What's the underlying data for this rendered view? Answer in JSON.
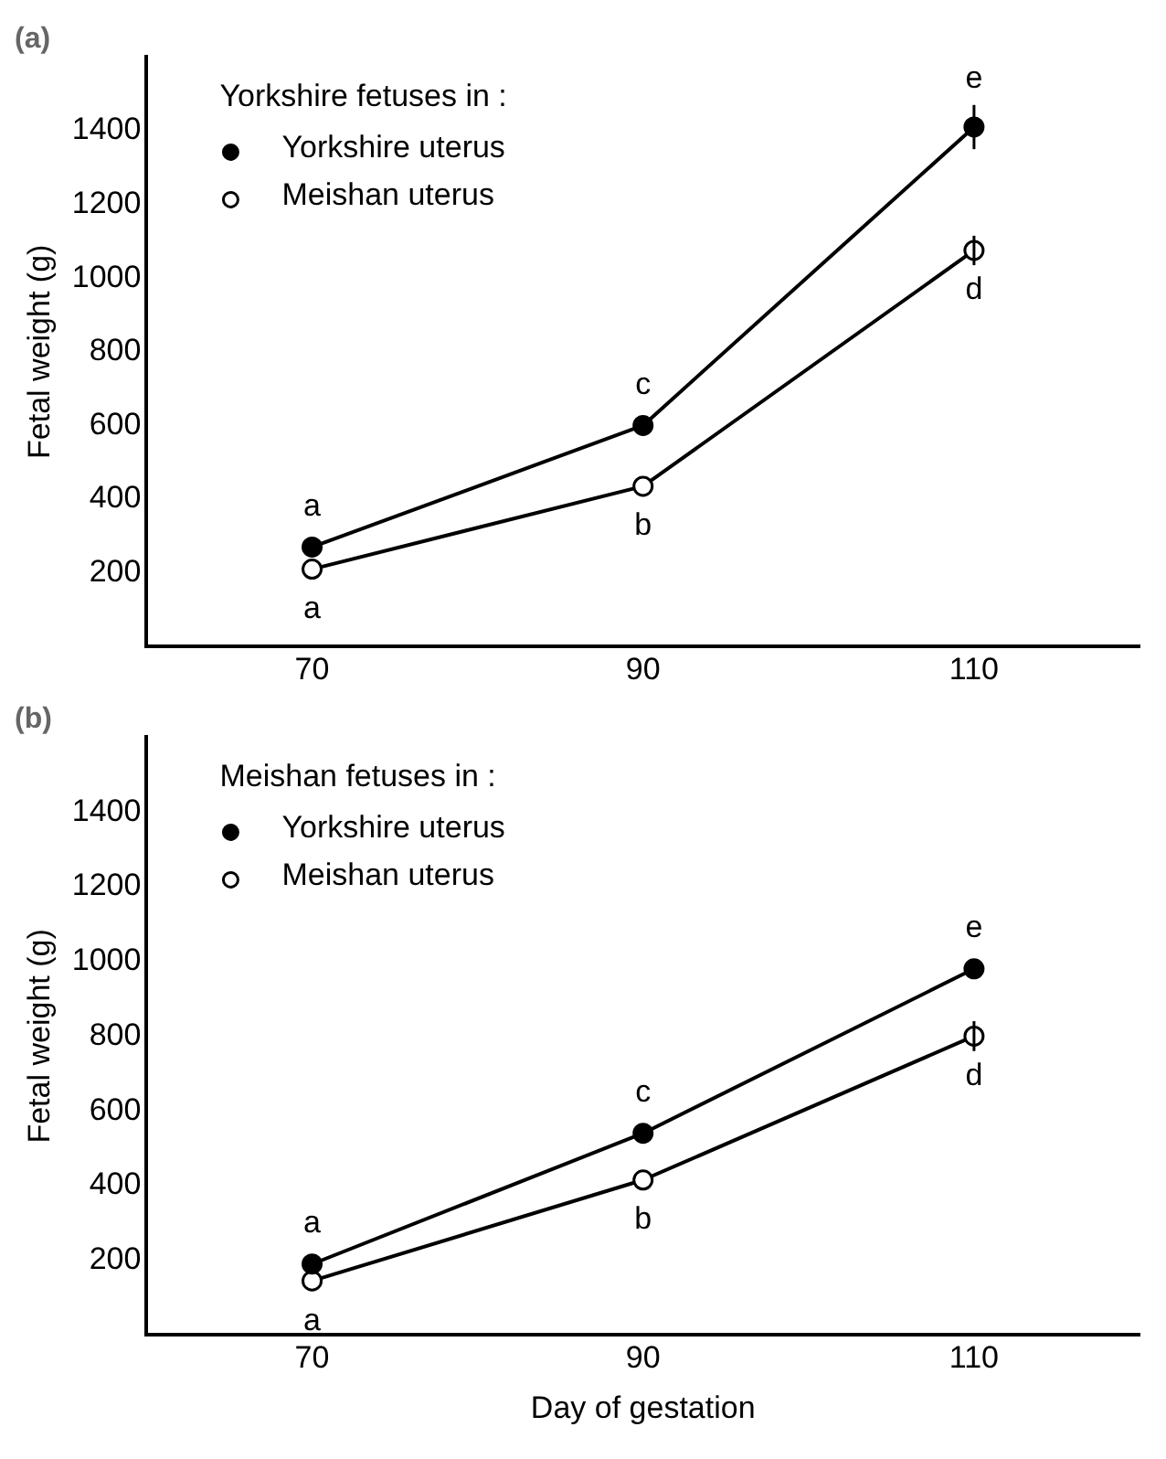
{
  "chart_data": [
    {
      "type": "line",
      "title": "(a)",
      "ylabel": "Fetal weight (g)",
      "legend_title": "Yorkshire fetuses in :",
      "legend": "top left",
      "marker": "circle",
      "grid": false,
      "x": [
        70,
        90,
        110
      ],
      "xlim": [
        60,
        120
      ],
      "xticks": [
        70,
        90,
        110
      ],
      "ylim": [
        0,
        1600
      ],
      "yticks": [
        200,
        400,
        600,
        800,
        1000,
        1200,
        1400
      ],
      "series": [
        {
          "name": "Yorkshire uterus",
          "color": "#000000",
          "colors": [
            "#000000",
            "#000000",
            "#000000"
          ],
          "values": [
            270,
            600,
            1410
          ],
          "errors": [
            null,
            null,
            60
          ]
        },
        {
          "name": "Meishan uterus",
          "color": "#000000",
          "colors": [
            "#ffffff",
            "#ffffff",
            "#ffffff"
          ],
          "values": [
            210,
            435,
            1075
          ],
          "errors": [
            null,
            null,
            40
          ]
        }
      ],
      "annotations": [
        {
          "text": "a",
          "x": 70,
          "y": 270
        },
        {
          "text": "a",
          "x": 70,
          "y": 210
        },
        {
          "text": "c",
          "x": 90,
          "y": 600
        },
        {
          "text": "b",
          "x": 90,
          "y": 435
        },
        {
          "text": "e",
          "x": 110,
          "y": 1410
        },
        {
          "text": "d",
          "x": 110,
          "y": 1075
        }
      ]
    },
    {
      "type": "line",
      "title": "(b)",
      "xlabel": "Day of gestation",
      "ylabel": "Fetal weight (g)",
      "legend_title": "Meishan fetuses in :",
      "legend": "top left",
      "marker": "circle",
      "grid": false,
      "x": [
        70,
        90,
        110
      ],
      "xlim": [
        60,
        120
      ],
      "xticks": [
        70,
        90,
        110
      ],
      "ylim": [
        0,
        1600
      ],
      "yticks": [
        200,
        400,
        600,
        800,
        1000,
        1200,
        1400
      ],
      "series": [
        {
          "name": "Yorkshire uterus",
          "color": "#000000",
          "colors": [
            "#000000",
            "#000000",
            "#000000"
          ],
          "values": [
            190,
            540,
            980
          ],
          "errors": [
            null,
            null,
            20
          ]
        },
        {
          "name": "Meishan uterus",
          "color": "#000000",
          "colors": [
            "#ffffff",
            "#ffffff",
            "#ffffff"
          ],
          "values": [
            145,
            415,
            800
          ],
          "errors": [
            null,
            null,
            40
          ]
        }
      ],
      "annotations": [
        {
          "text": "a",
          "x": 70,
          "y": 190
        },
        {
          "text": "a",
          "x": 70,
          "y": 145
        },
        {
          "text": "c",
          "x": 90,
          "y": 540
        },
        {
          "text": "b",
          "x": 90,
          "y": 415
        },
        {
          "text": "e",
          "x": 110,
          "y": 980
        },
        {
          "text": "d",
          "x": 110,
          "y": 800
        }
      ]
    }
  ]
}
